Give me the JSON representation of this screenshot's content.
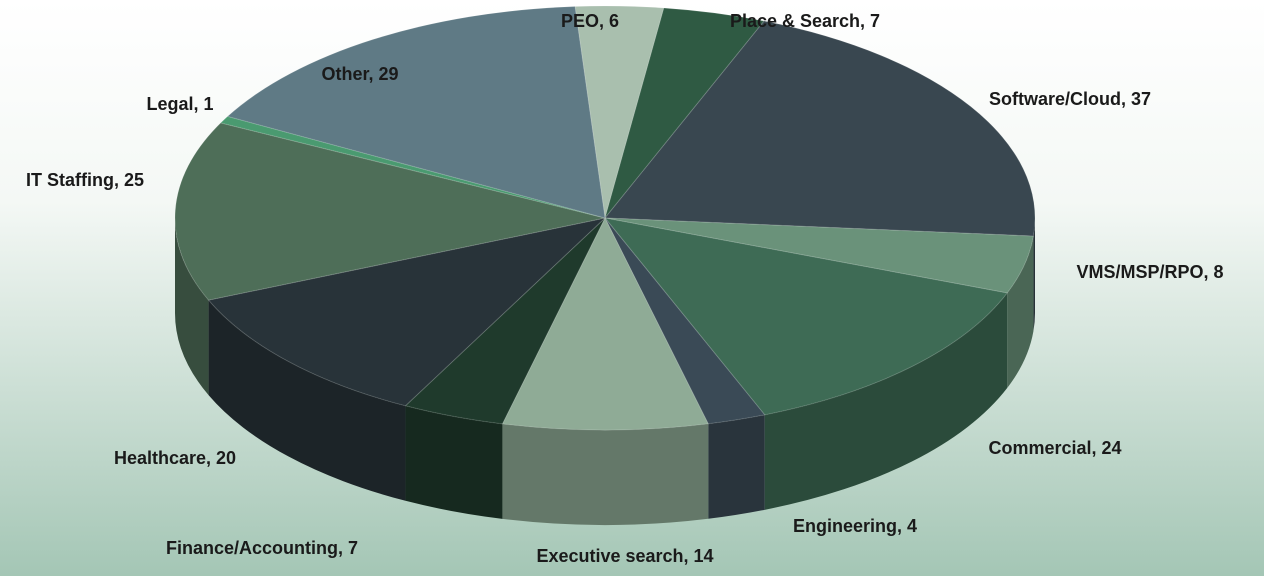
{
  "chart_data": {
    "type": "pie",
    "values": [
      6,
      7,
      37,
      8,
      24,
      4,
      14,
      7,
      20,
      25,
      1,
      29
    ],
    "value_labels": [
      "PEO, 6",
      "Place & Search, 7",
      "Software/Cloud, 37",
      "VMS/MSP/RPO, 8",
      "Commercial, 24",
      "Engineering, 4",
      "Executive search, 14",
      "Finance/Accounting, 7",
      "Healthcare, 20",
      "IT Staffing, 25",
      "Legal, 1",
      "Other, 29"
    ],
    "colors": [
      "#a9bfae",
      "#2f5a43",
      "#394750",
      "#6a927a",
      "#3e6b55",
      "#3a4a56",
      "#8fab96",
      "#1f3a2c",
      "#283339",
      "#4e6e58",
      "#4a9a70",
      "#5f7a85"
    ]
  }
}
